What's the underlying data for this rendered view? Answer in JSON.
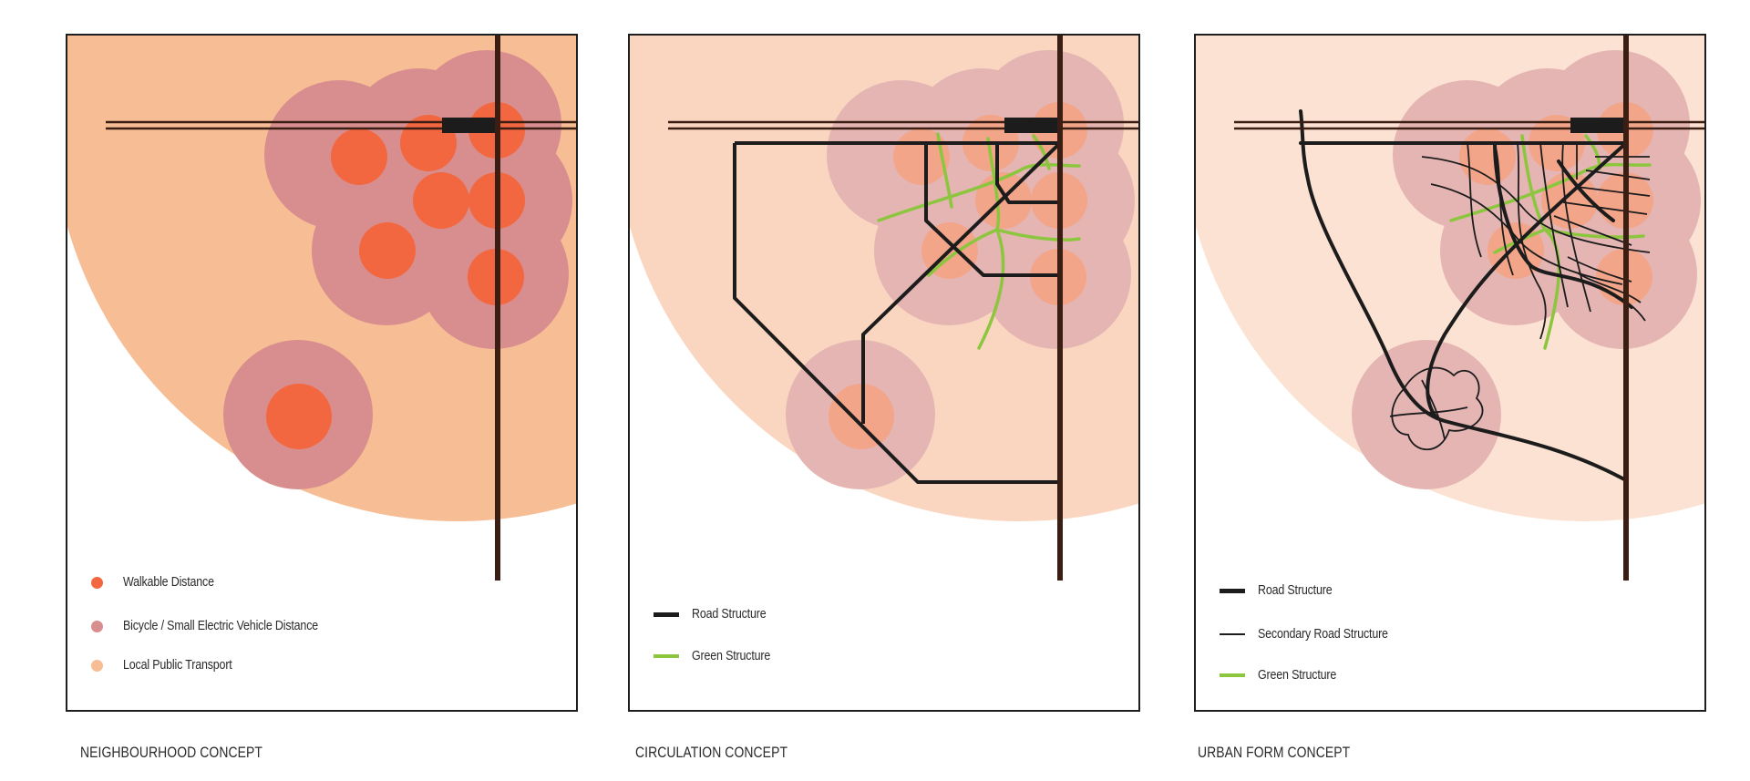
{
  "colors": {
    "walkable": "#f2673f",
    "bicycle": "#d88e8e",
    "transport": "#f7bd95",
    "road": "#1c1c1c",
    "rail": "#3a1e14",
    "green": "#8cc63f",
    "frame": "#1e1e1e"
  },
  "panels": [
    {
      "caption": "NEIGHBOURHOOD CONCEPT",
      "legend": [
        {
          "label": "Walkable Distance",
          "swatch": "walkable-dot"
        },
        {
          "label": "Bicycle / Small Electric Vehicle Distance",
          "swatch": "bicycle-dot"
        },
        {
          "label": "Local Public Transport",
          "swatch": "transport-dot"
        }
      ]
    },
    {
      "caption": "CIRCULATION CONCEPT",
      "legend": [
        {
          "label": "Road Structure",
          "swatch": "road-line"
        },
        {
          "label": "Green Structure",
          "swatch": "green-line"
        }
      ]
    },
    {
      "caption": "URBAN FORM CONCEPT",
      "legend": [
        {
          "label": "Road Structure",
          "swatch": "road-line"
        },
        {
          "label": "Secondary Road Structure",
          "swatch": "secondary-line"
        },
        {
          "label": "Green Structure",
          "swatch": "green-line"
        }
      ]
    }
  ]
}
